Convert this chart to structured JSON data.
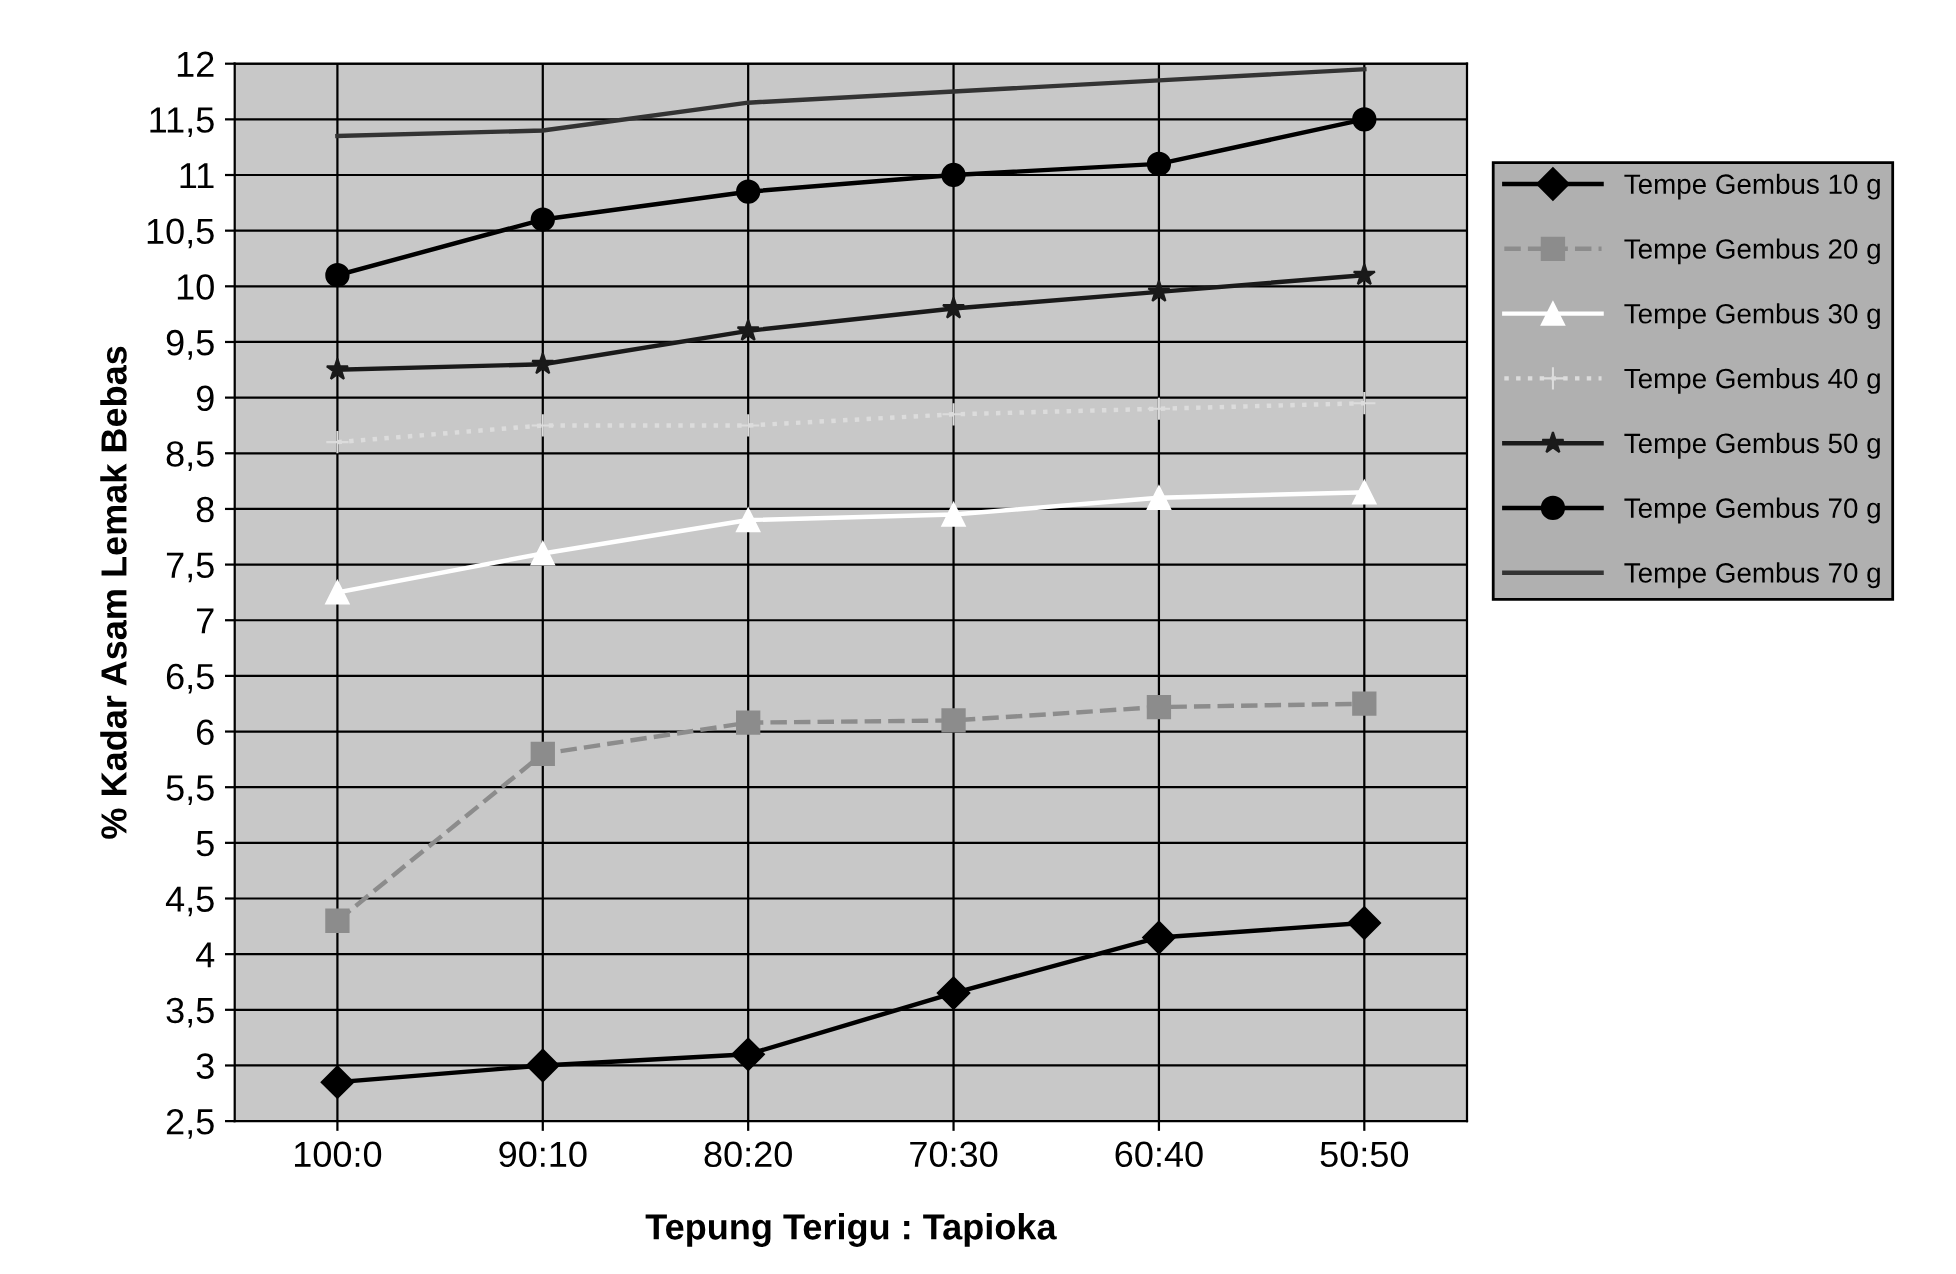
{
  "chart_data": {
    "type": "line",
    "xlabel": "Tepung Terigu : Tapioka",
    "ylabel": "% Kadar Asam Lemak Bebas",
    "categories": [
      "100:0",
      "90:10",
      "80:20",
      "70:30",
      "60:40",
      "50:50"
    ],
    "series": [
      {
        "name": "Tempe Gembus 10 g",
        "color": "#000000",
        "marker": "diamond",
        "values": [
          2.85,
          3.0,
          3.1,
          3.65,
          4.15,
          4.28
        ]
      },
      {
        "name": "Tempe Gembus 20 g",
        "color": "#8c8c8c",
        "marker": "square",
        "line_style": "dashed",
        "values": [
          4.3,
          5.8,
          6.08,
          6.1,
          6.22,
          6.25
        ]
      },
      {
        "name": "Tempe Gembus 30 g",
        "color": "#ffffff",
        "marker": "triangle",
        "values": [
          7.25,
          7.6,
          7.9,
          7.95,
          8.1,
          8.15
        ]
      },
      {
        "name": "Tempe Gembus 40 g",
        "color": "#dcdcdc",
        "marker": "cross",
        "line_style": "dotted",
        "values": [
          8.6,
          8.75,
          8.75,
          8.85,
          8.9,
          8.95
        ]
      },
      {
        "name": "Tempe Gembus 50 g",
        "color": "#1a1a1a",
        "marker": "star",
        "values": [
          9.25,
          9.3,
          9.6,
          9.8,
          9.95,
          10.1
        ]
      },
      {
        "name": "Tempe Gembus 70 g",
        "color": "#000000",
        "marker": "circle",
        "values": [
          10.1,
          10.6,
          10.85,
          11.0,
          11.1,
          11.5
        ]
      },
      {
        "name": "Tempe Gembus 70 g",
        "color": "#333333",
        "marker": "none",
        "values": [
          11.35,
          11.4,
          11.65,
          11.75,
          11.85,
          11.95
        ]
      }
    ],
    "ylim": [
      2.5,
      12
    ],
    "yticks": [
      {
        "value": 2.5,
        "label": "2,5"
      },
      3,
      {
        "value": 3.5,
        "label": "3,5"
      },
      4,
      {
        "value": 4.5,
        "label": "4,5"
      },
      5,
      {
        "value": 5.5,
        "label": "5,5"
      },
      6,
      {
        "value": 6.5,
        "label": "6,5"
      },
      7,
      {
        "value": 7.5,
        "label": "7,5"
      },
      8,
      {
        "value": 8.5,
        "label": "8,5"
      },
      9,
      {
        "value": 9.5,
        "label": "9,5"
      },
      10,
      {
        "value": 10.5,
        "label": "10,5"
      },
      11,
      {
        "value": 11.5,
        "label": "11,5"
      },
      12
    ],
    "grid": true,
    "legend": "right"
  }
}
